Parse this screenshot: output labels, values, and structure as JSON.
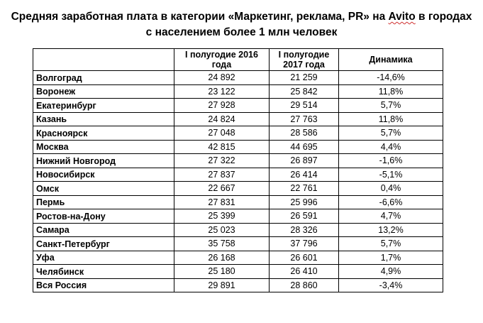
{
  "title": {
    "part1": "Средняя заработная плата в категории «Маркетинг, реклама, PR» на ",
    "brand": "Avito",
    "part2": " в городах",
    "line2": "с населением более 1 млн человек"
  },
  "table": {
    "headers": [
      "",
      "I полугодие 2016 года",
      "I полугодие 2017 года",
      "Динамика"
    ],
    "rows": [
      [
        "Волгоград",
        "24 892",
        "21 259",
        "-14,6%"
      ],
      [
        "Воронеж",
        "23 122",
        "25 842",
        "11,8%"
      ],
      [
        "Екатеринбург",
        "27 928",
        "29 514",
        "5,7%"
      ],
      [
        "Казань",
        "24 824",
        "27 763",
        "11,8%"
      ],
      [
        "Красноярск",
        "27 048",
        "28 586",
        "5,7%"
      ],
      [
        "Москва",
        "42 815",
        "44 695",
        "4,4%"
      ],
      [
        "Нижний Новгород",
        "27 322",
        "26 897",
        "-1,6%"
      ],
      [
        "Новосибирск",
        "27 837",
        "26 414",
        "-5,1%"
      ],
      [
        "Омск",
        "22 667",
        "22 761",
        "0,4%"
      ],
      [
        "Пермь",
        "27 831",
        "25 996",
        "-6,6%"
      ],
      [
        "Ростов-на-Дону",
        "25 399",
        "26 591",
        "4,7%"
      ],
      [
        "Самара",
        "25 023",
        "28 326",
        "13,2%"
      ],
      [
        "Санкт-Петербург",
        "35 758",
        "37 796",
        "5,7%"
      ],
      [
        "Уфа",
        "26 168",
        "26 601",
        "1,7%"
      ],
      [
        "Челябинск",
        "25 180",
        "26 410",
        "4,9%"
      ],
      [
        "Вся Россия",
        "29 891",
        "28 860",
        "-3,4%"
      ]
    ]
  }
}
